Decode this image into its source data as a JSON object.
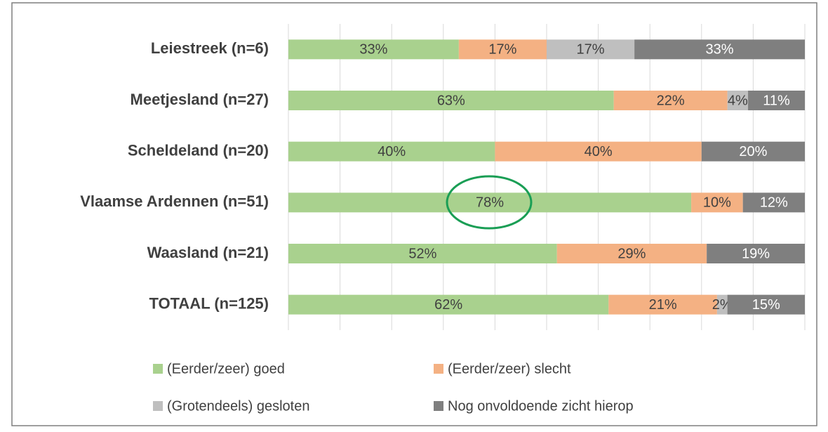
{
  "chart_data": {
    "type": "stacked-barh",
    "categories": [
      "Leiestreek (n=6)",
      "Meetjesland (n=27)",
      "Scheldeland (n=20)",
      "Vlaamse Ardennen (n=51)",
      "Waasland (n=21)",
      "TOTAAL (n=125)"
    ],
    "series": [
      {
        "name": "(Eerder/zeer) goed",
        "color": "#a9d18e",
        "label_color": "#404040",
        "values": [
          33,
          63,
          40,
          78,
          52,
          62
        ],
        "value_labels": [
          "33%",
          "63%",
          "40%",
          "78%",
          "52%",
          "62%"
        ]
      },
      {
        "name": "(Eerder/zeer) slecht",
        "color": "#f4b183",
        "label_color": "#404040",
        "values": [
          17,
          22,
          40,
          10,
          29,
          21
        ],
        "value_labels": [
          "17%",
          "22%",
          "40%",
          "10%",
          "29%",
          "21%"
        ]
      },
      {
        "name": "(Grotendeels) gesloten",
        "color": "#bfbfbf",
        "label_color": "#404040",
        "values": [
          17,
          4,
          null,
          null,
          null,
          2
        ],
        "value_labels": [
          "17%",
          "4%",
          null,
          null,
          null,
          "2%"
        ]
      },
      {
        "name": "Nog onvoldoende zicht hierop",
        "color": "#7f7f7f",
        "label_color": "#ffffff",
        "values": [
          33,
          11,
          20,
          12,
          19,
          15
        ],
        "value_labels": [
          "33%",
          "11%",
          "20%",
          "12%",
          "19%",
          "15%"
        ]
      }
    ],
    "xlim": [
      0,
      100
    ],
    "xticks": [
      0,
      10,
      20,
      30,
      40,
      50,
      60,
      70,
      80,
      90,
      100
    ],
    "grid": true
  }
}
